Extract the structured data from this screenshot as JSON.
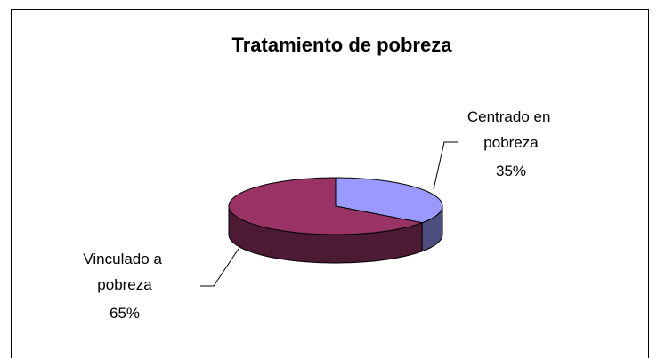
{
  "chart_data": {
    "type": "pie",
    "title": "Tratamiento de pobreza",
    "categories": [
      "Centrado en pobreza",
      "Vinculado a pobreza"
    ],
    "values": [
      35,
      65
    ],
    "value_labels": [
      "35%",
      "65%"
    ],
    "colors": [
      "#9999ff",
      "#993366"
    ]
  }
}
